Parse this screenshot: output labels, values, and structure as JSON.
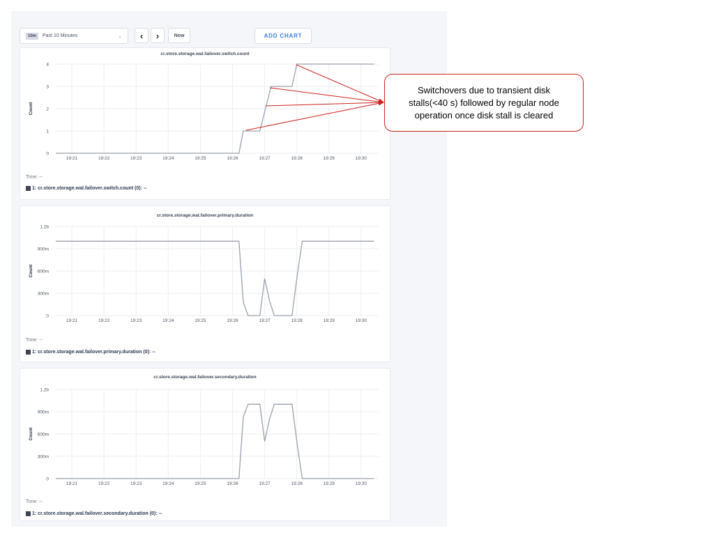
{
  "toolbar": {
    "range_badge": "10m",
    "range_label": "Past 10 Minutes",
    "prev_icon": "chevron-left-icon",
    "next_icon": "chevron-right-icon",
    "now_label": "Now",
    "add_chart_label": "ADD CHART"
  },
  "annotation": {
    "text": "Switchovers due to transient disk stalls(<40 s) followed by regular node operation once disk stall is cleared",
    "color": "#d0211c"
  },
  "chart_data": [
    {
      "type": "line",
      "title": "cr.store.storage.wal.failover.switch.count",
      "ylabel": "Count",
      "ylim": [
        0,
        4
      ],
      "yticks": [
        {
          "v": 0,
          "label": "0"
        },
        {
          "v": 1,
          "label": "1"
        },
        {
          "v": 2,
          "label": "2"
        },
        {
          "v": 3,
          "label": "3"
        },
        {
          "v": 4,
          "label": "4"
        }
      ],
      "xticks": [
        "19:21",
        "19:22",
        "19:23",
        "19:24",
        "19:25",
        "19:26",
        "19:27",
        "19:28",
        "19:29",
        "19:30"
      ],
      "x": [
        "19:20:30",
        "19:26:12",
        "19:26:20",
        "19:26:51",
        "19:27:12",
        "19:27:51",
        "19:28:00",
        "19:30:24"
      ],
      "y": [
        0,
        0,
        1,
        1,
        3,
        3,
        4,
        4
      ],
      "time_label": "Time:  --",
      "legend": "1: cr.store.storage.wal.failover.switch.count (0):  --",
      "line_color": "#9aa0ab"
    },
    {
      "type": "line",
      "title": "cr.store.storage.wal.failover.primary.duration",
      "ylabel": "Count",
      "ylim": [
        0,
        1.2
      ],
      "yticks": [
        {
          "v": 0,
          "label": "0"
        },
        {
          "v": 0.3,
          "label": "300m"
        },
        {
          "v": 0.6,
          "label": "600m"
        },
        {
          "v": 0.9,
          "label": "900m"
        },
        {
          "v": 1.2,
          "label": "1.2b"
        }
      ],
      "xticks": [
        "19:21",
        "19:22",
        "19:23",
        "19:24",
        "19:25",
        "19:26",
        "19:27",
        "19:28",
        "19:29",
        "19:30"
      ],
      "x": [
        "19:20:30",
        "19:26:12",
        "19:26:20",
        "19:26:29",
        "19:26:51",
        "19:27:00",
        "19:27:09",
        "19:27:18",
        "19:27:51",
        "19:28:00",
        "19:28:10",
        "19:30:24"
      ],
      "y": [
        1,
        1,
        0.18,
        0,
        0,
        0.5,
        0.2,
        0,
        0,
        0.5,
        1,
        1
      ],
      "time_label": "Time:  --",
      "legend": "1: cr.store.storage.wal.failover.primary.duration (0):  --",
      "line_color": "#9aa0ab"
    },
    {
      "type": "line",
      "title": "cr.store.storage.wal.failover.secondary.duration",
      "ylabel": "Count",
      "ylim": [
        0,
        1.2
      ],
      "yticks": [
        {
          "v": 0,
          "label": "0"
        },
        {
          "v": 0.3,
          "label": "300m"
        },
        {
          "v": 0.6,
          "label": "600m"
        },
        {
          "v": 0.9,
          "label": "900m"
        },
        {
          "v": 1.2,
          "label": "1.2b"
        }
      ],
      "xticks": [
        "19:21",
        "19:22",
        "19:23",
        "19:24",
        "19:25",
        "19:26",
        "19:27",
        "19:28",
        "19:29",
        "19:30"
      ],
      "x": [
        "19:20:30",
        "19:26:12",
        "19:26:20",
        "19:26:29",
        "19:26:51",
        "19:27:00",
        "19:27:09",
        "19:27:18",
        "19:27:51",
        "19:28:00",
        "19:28:10",
        "19:30:24"
      ],
      "y": [
        0,
        0,
        0.83,
        1,
        1,
        0.5,
        0.8,
        1,
        1,
        0.5,
        0,
        0
      ],
      "time_label": "Time:  --",
      "legend": "1: cr.store.storage.wal.failover.secondary.duration (0):  --",
      "line_color": "#9aa0ab"
    }
  ]
}
